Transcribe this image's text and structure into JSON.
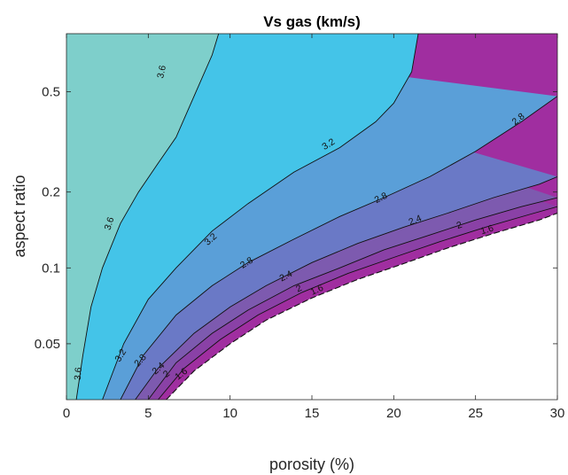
{
  "chart_data": {
    "type": "contour",
    "title": "Vs gas (km/s)",
    "xlabel": "porosity (%)",
    "ylabel": "aspect ratio",
    "xlim": [
      0,
      30
    ],
    "ylim": [
      0.03,
      0.85
    ],
    "yscale": "log",
    "x_ticks": [
      0,
      5,
      10,
      15,
      20,
      25,
      30
    ],
    "y_ticks": [
      0.05,
      0.1,
      0.2,
      0.5
    ],
    "grid": false,
    "legend": "none",
    "levels": [
      {
        "value": 3.6,
        "label": "3.6",
        "color": "#7ecfcb",
        "x": [
          0.6,
          1.0,
          1.5,
          2.2,
          3.3,
          4.4,
          5.6,
          6.7,
          7.8,
          8.9,
          9.3
        ],
        "y": [
          0.03,
          0.045,
          0.07,
          0.1,
          0.15,
          0.2,
          0.26,
          0.33,
          0.48,
          0.7,
          0.85
        ]
      },
      {
        "value": 3.2,
        "label": "3.2",
        "color": "#44c4e8",
        "x": [
          2.2,
          3.5,
          5.0,
          6.7,
          8.9,
          11.1,
          13.9,
          16.7,
          18.9,
          20.0,
          21.1,
          21.5
        ],
        "y": [
          0.03,
          0.05,
          0.075,
          0.1,
          0.14,
          0.18,
          0.24,
          0.3,
          0.38,
          0.45,
          0.6,
          0.85
        ]
      },
      {
        "value": 2.8,
        "label": "2.8",
        "color": "#5a9fd8",
        "x": [
          3.3,
          4.7,
          6.7,
          8.9,
          11.1,
          13.9,
          16.7,
          19.4,
          22.2,
          25.0,
          27.8,
          30.0
        ],
        "y": [
          0.03,
          0.045,
          0.065,
          0.085,
          0.105,
          0.13,
          0.16,
          0.19,
          0.23,
          0.29,
          0.38,
          0.48
        ]
      },
      {
        "value": 2.4,
        "label": "2.4",
        "color": "#6a79c6",
        "x": [
          4.2,
          5.6,
          7.8,
          10.0,
          12.2,
          15.0,
          17.8,
          20.6,
          23.3,
          26.1,
          28.9,
          30.0
        ],
        "y": [
          0.03,
          0.04,
          0.055,
          0.07,
          0.085,
          0.105,
          0.125,
          0.145,
          0.165,
          0.19,
          0.215,
          0.23
        ]
      },
      {
        "value": 2.0,
        "label": "2",
        "color": "#7d5aaf",
        "x": [
          5.0,
          6.7,
          8.9,
          11.1,
          13.9,
          16.7,
          19.4,
          22.2,
          25.0,
          27.8,
          30.0
        ],
        "y": [
          0.03,
          0.042,
          0.055,
          0.068,
          0.085,
          0.1,
          0.118,
          0.135,
          0.155,
          0.175,
          0.19
        ]
      },
      {
        "value": 1.6,
        "label": "1.6",
        "color": "#8a41a6",
        "x": [
          5.6,
          7.2,
          9.4,
          11.7,
          14.4,
          17.2,
          20.0,
          22.8,
          25.6,
          28.3,
          30.0
        ],
        "y": [
          0.03,
          0.04,
          0.052,
          0.065,
          0.08,
          0.095,
          0.11,
          0.127,
          0.145,
          0.163,
          0.175
        ]
      }
    ],
    "bottom_fill_color": "#a02ea0",
    "boundary": {
      "x": [
        6.1,
        7.8,
        10.0,
        12.2,
        15.0,
        17.8,
        20.6,
        23.3,
        26.1,
        28.9,
        30.0
      ],
      "y": [
        0.03,
        0.039,
        0.05,
        0.062,
        0.076,
        0.09,
        0.104,
        0.12,
        0.137,
        0.155,
        0.165
      ]
    },
    "contour_labels": [
      {
        "text": "3.6",
        "x": 5.8,
        "y": 0.6,
        "angle": -78
      },
      {
        "text": "3.6",
        "x": 2.6,
        "y": 0.15,
        "angle": -72
      },
      {
        "text": "3.6",
        "x": 0.7,
        "y": 0.038,
        "angle": -85
      },
      {
        "text": "3.2",
        "x": 16.0,
        "y": 0.31,
        "angle": -32
      },
      {
        "text": "3.2",
        "x": 8.8,
        "y": 0.13,
        "angle": -42
      },
      {
        "text": "3.2",
        "x": 3.3,
        "y": 0.045,
        "angle": -58
      },
      {
        "text": "2.8",
        "x": 27.6,
        "y": 0.39,
        "angle": -38
      },
      {
        "text": "2.8",
        "x": 19.2,
        "y": 0.19,
        "angle": -26
      },
      {
        "text": "2.8",
        "x": 11.0,
        "y": 0.105,
        "angle": -32
      },
      {
        "text": "2.8",
        "x": 4.5,
        "y": 0.043,
        "angle": -48
      },
      {
        "text": "2.4",
        "x": 21.3,
        "y": 0.155,
        "angle": -22
      },
      {
        "text": "2.4",
        "x": 13.4,
        "y": 0.093,
        "angle": -27
      },
      {
        "text": "2.4",
        "x": 5.6,
        "y": 0.04,
        "angle": -42
      },
      {
        "text": "2",
        "x": 24.0,
        "y": 0.148,
        "angle": -18
      },
      {
        "text": "2",
        "x": 14.2,
        "y": 0.083,
        "angle": -25
      },
      {
        "text": "2",
        "x": 6.1,
        "y": 0.038,
        "angle": -40
      },
      {
        "text": "1.6",
        "x": 25.7,
        "y": 0.142,
        "angle": -17
      },
      {
        "text": "1.6",
        "x": 15.3,
        "y": 0.082,
        "angle": -24
      },
      {
        "text": "1.6",
        "x": 7.0,
        "y": 0.038,
        "angle": -38
      }
    ]
  }
}
